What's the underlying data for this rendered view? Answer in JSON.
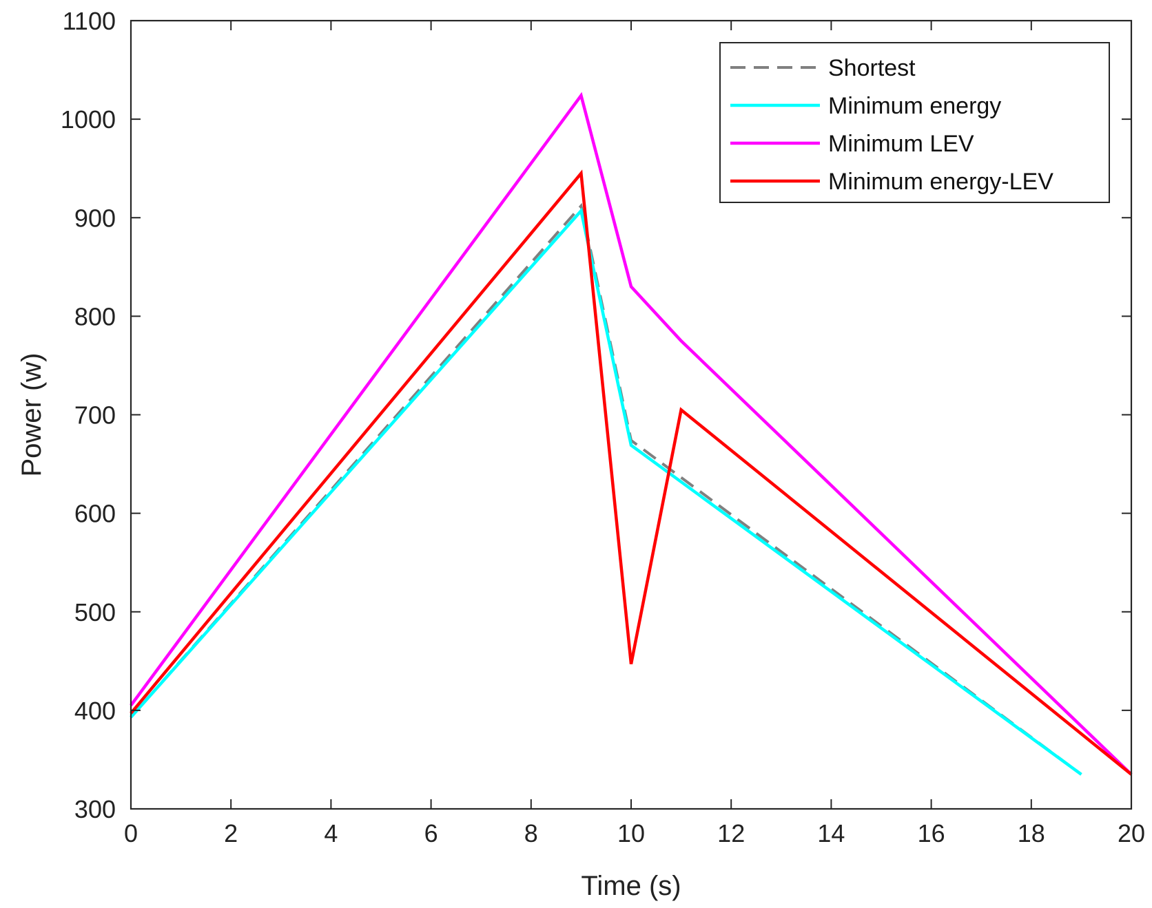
{
  "chart_data": {
    "type": "line",
    "title": "",
    "xlabel": "Time (s)",
    "ylabel": "Power (w)",
    "xlim": [
      0,
      20
    ],
    "ylim": [
      300,
      1100
    ],
    "xticks": [
      0,
      2,
      4,
      6,
      8,
      10,
      12,
      14,
      16,
      18,
      20
    ],
    "yticks": [
      300,
      400,
      500,
      600,
      700,
      800,
      900,
      1000,
      1100
    ],
    "grid": false,
    "legend_position": "top-right",
    "series": [
      {
        "name": "Shortest",
        "color": "#808080",
        "dash": "dashed",
        "x": [
          0,
          9,
          10,
          19
        ],
        "y": [
          393,
          912,
          674,
          335
        ]
      },
      {
        "name": "Minimum energy",
        "color": "#00ffff",
        "dash": "solid",
        "x": [
          0,
          9,
          10,
          19
        ],
        "y": [
          393,
          907,
          669,
          335
        ]
      },
      {
        "name": "Minimum LEV",
        "color": "#ff00ff",
        "dash": "solid",
        "x": [
          0,
          9,
          10,
          11,
          20
        ],
        "y": [
          405,
          1024,
          830,
          775,
          335
        ]
      },
      {
        "name": "Minimum energy-LEV",
        "color": "#ff0000",
        "dash": "solid",
        "x": [
          0,
          9,
          10,
          11,
          20
        ],
        "y": [
          397,
          945,
          447,
          705,
          335
        ]
      }
    ]
  }
}
